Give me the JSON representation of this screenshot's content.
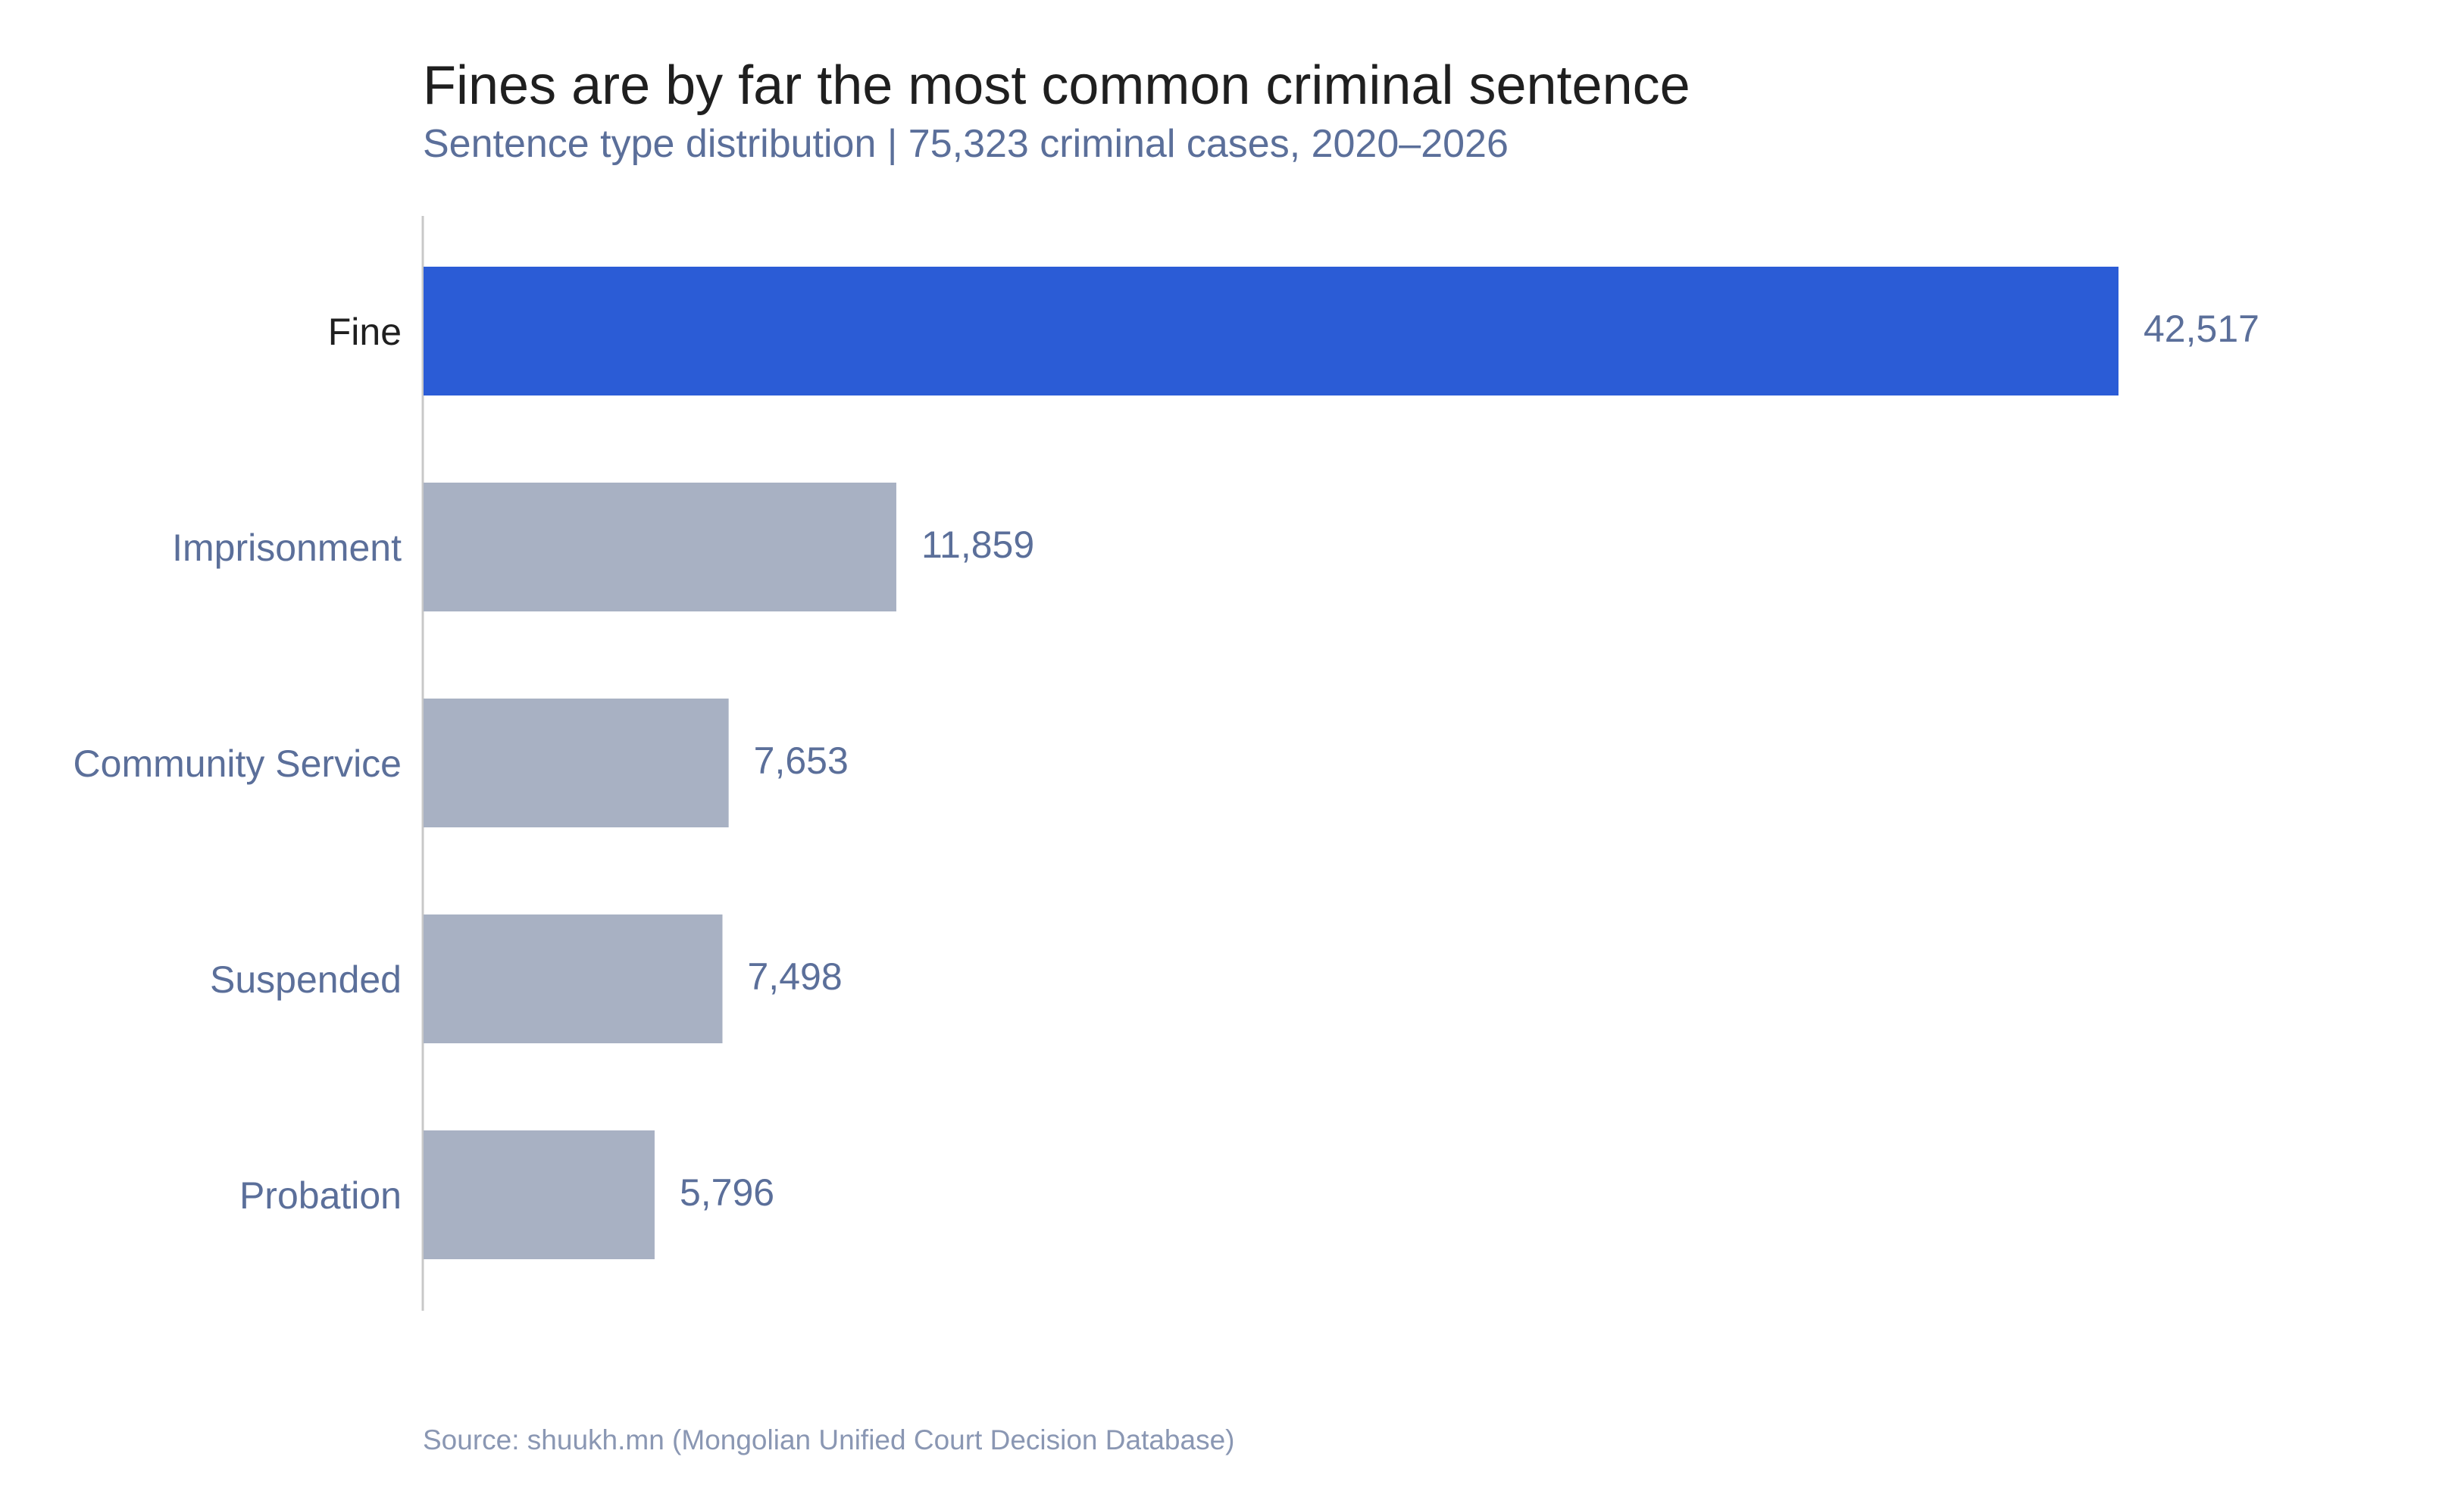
{
  "chart_data": {
    "type": "bar",
    "orientation": "horizontal",
    "title": "Fines are by far the most common criminal sentence",
    "subtitle": "Sentence type distribution | 75,323 criminal cases, 2020–2026",
    "source": "Source: shuukh.mn (Mongolian Unified Court Decision Database)",
    "categories": [
      "Fine",
      "Imprisonment",
      "Community Service",
      "Suspended",
      "Probation"
    ],
    "values": [
      42517,
      11859,
      7653,
      7498,
      5796
    ],
    "value_labels": [
      "42,517",
      "11,859",
      "7,653",
      "7,498",
      "5,796"
    ],
    "highlight_category": "Fine",
    "xlim": [
      0,
      42517
    ],
    "grid": false,
    "legend": "none",
    "colors": {
      "highlight": "#2b5cd6",
      "default": "#a8b1c3",
      "highlight_label": "#1f1f1f",
      "label": "#5b6f9a",
      "axis": "#c8c8c8"
    }
  }
}
